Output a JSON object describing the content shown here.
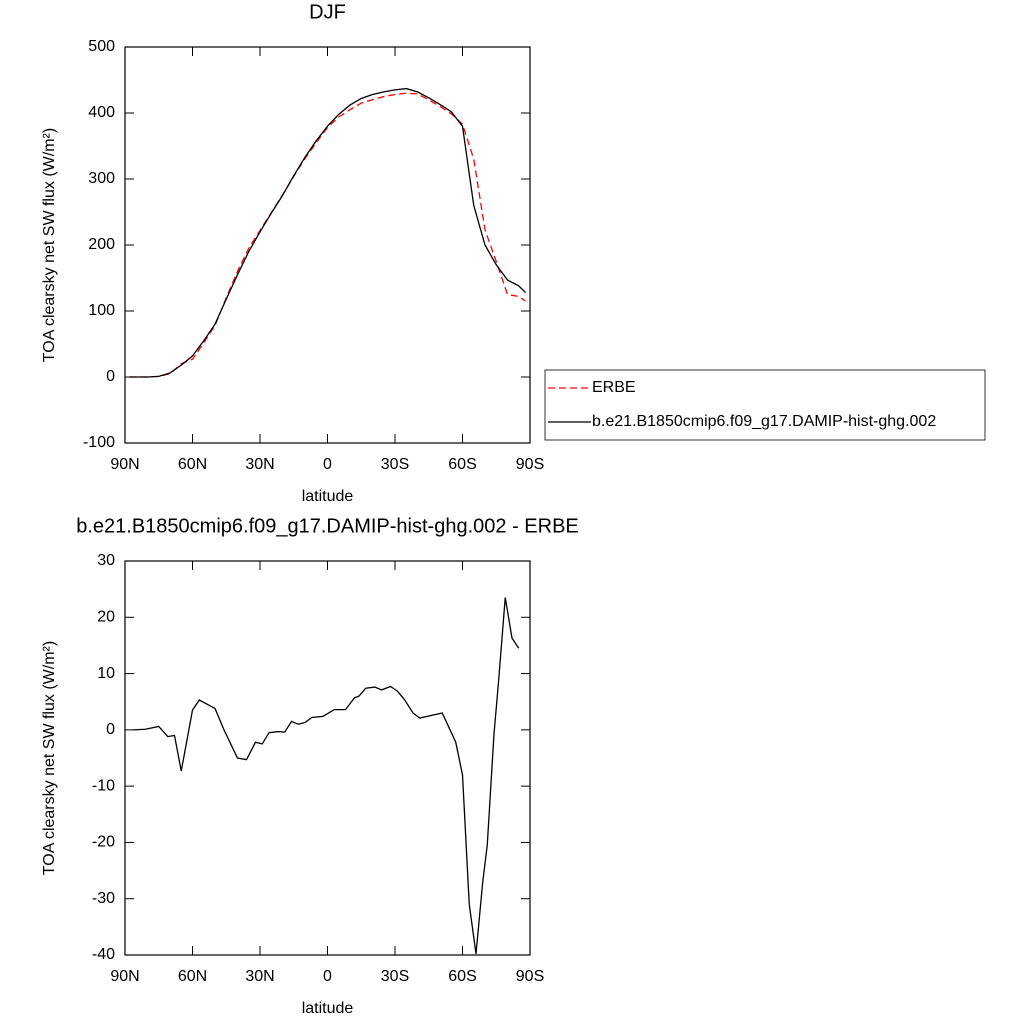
{
  "chart_data": [
    {
      "type": "line",
      "title": "DJF",
      "xlabel": "latitude",
      "ylabel": "TOA clearsky net SW flux (W/m²)",
      "xlim": [
        90,
        -90
      ],
      "xticks": [
        {
          "value": 90,
          "label": "90N"
        },
        {
          "value": 60,
          "label": "60N"
        },
        {
          "value": 30,
          "label": "30N"
        },
        0,
        {
          "value": -30,
          "label": "30S"
        },
        {
          "value": -60,
          "label": "60S"
        },
        {
          "value": -90,
          "label": "90S"
        }
      ],
      "ylim": [
        -100,
        500
      ],
      "yticks": [
        -100,
        0,
        100,
        200,
        300,
        400,
        500
      ],
      "legend": "right",
      "x": [
        88,
        85,
        80,
        75,
        70,
        65,
        60,
        55,
        50,
        45,
        40,
        35,
        30,
        25,
        20,
        15,
        10,
        5,
        0,
        -5,
        -10,
        -15,
        -20,
        -25,
        -30,
        -35,
        -40,
        -45,
        -50,
        -55,
        -60,
        -65,
        -70,
        -75,
        -80,
        -85,
        -88
      ],
      "series": [
        {
          "name": "ERBE",
          "color": "#ff0000",
          "linestyle": "dashed",
          "values": [
            0,
            0,
            0,
            1,
            5,
            20,
            27,
            52,
            78,
            120,
            160,
            195,
            222,
            249,
            276,
            304,
            331,
            355,
            378,
            394,
            405,
            415,
            420,
            425,
            428,
            430,
            429,
            420,
            410,
            399,
            383,
            330,
            223,
            175,
            125,
            122,
            115
          ]
        },
        {
          "name": "b.e21.B1850cmip6.f09_g17.DAMIP-hist-ghg.002",
          "color": "#000000",
          "linestyle": "solid",
          "values": [
            0,
            0,
            0,
            1,
            6,
            18,
            32,
            55,
            80,
            118,
            155,
            190,
            220,
            248,
            275,
            305,
            333,
            358,
            380,
            398,
            412,
            422,
            428,
            432,
            435,
            437,
            432,
            423,
            413,
            402,
            380,
            260,
            200,
            170,
            147,
            138,
            128
          ]
        }
      ]
    },
    {
      "type": "line",
      "title": "b.e21.B1850cmip6.f09_g17.DAMIP-hist-ghg.002 - ERBE",
      "xlabel": "latitude",
      "ylabel": "TOA clearsky net SW flux (W/m²)",
      "xlim": [
        90,
        -90
      ],
      "xticks": [
        {
          "value": 90,
          "label": "90N"
        },
        {
          "value": 60,
          "label": "60N"
        },
        {
          "value": 30,
          "label": "30N"
        },
        0,
        {
          "value": -30,
          "label": "30S"
        },
        {
          "value": -60,
          "label": "60S"
        },
        {
          "value": -90,
          "label": "90S"
        }
      ],
      "ylim": [
        -40,
        30
      ],
      "yticks": [
        -40,
        -30,
        -20,
        -10,
        0,
        10,
        20,
        30
      ],
      "x": [
        86.4,
        81,
        75,
        71,
        68,
        65,
        60,
        57,
        50,
        46,
        40,
        36,
        32,
        29,
        26,
        22,
        19,
        16,
        13,
        10,
        7,
        2,
        -3,
        -8,
        -12,
        -14,
        -17,
        -21,
        -24,
        -28,
        -31,
        -34,
        -38,
        -41,
        -51,
        -57,
        -60,
        -63,
        -66,
        -69,
        -71,
        -74,
        -76,
        -79,
        -82,
        -85
      ],
      "series": [
        {
          "color": "#000000",
          "linestyle": "solid",
          "values": [
            0,
            0.1,
            0.6,
            -1.2,
            -1,
            -7.3,
            3.5,
            5.3,
            3.8,
            0,
            -5,
            -5.3,
            -2.2,
            -2.5,
            -0.5,
            -0.3,
            -0.4,
            1.5,
            1,
            1.3,
            2.2,
            2.4,
            3.6,
            3.6,
            5.7,
            6,
            7.4,
            7.6,
            7.1,
            7.7,
            6.9,
            5.5,
            3,
            2.1,
            3,
            -2.2,
            -8,
            -31,
            -39.8,
            -27,
            -20.5,
            -0.7,
            8.5,
            23.5,
            16.3,
            14.5
          ]
        }
      ]
    }
  ]
}
